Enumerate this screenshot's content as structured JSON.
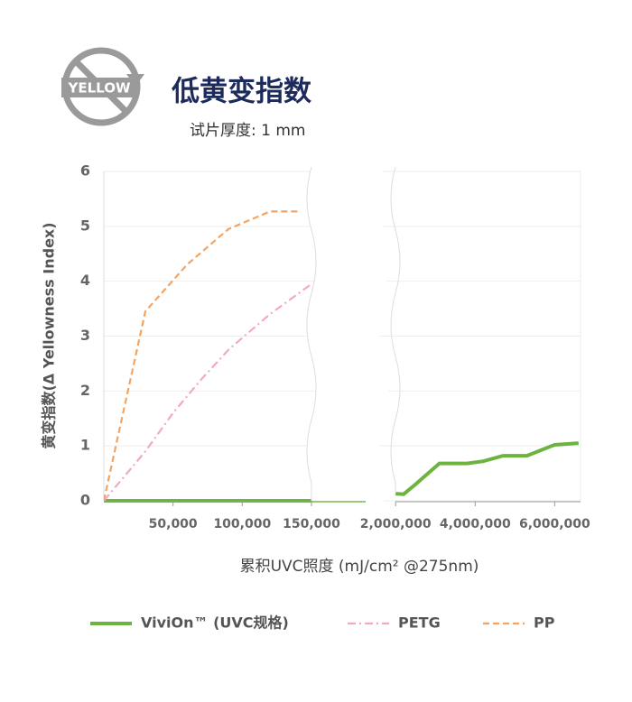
{
  "chart_data": {
    "type": "line",
    "title": "低黄变指数",
    "subtitle": "试片厚度: 1 mm",
    "icon_label": "YELLOW",
    "y_label": "黄变指数(Δ Yellowness Index)",
    "x_label": "累积UVC照度 (mJ/cm² @275nm)",
    "ylim": [
      0,
      6
    ],
    "yticks": [
      0,
      1,
      2,
      3,
      4,
      5,
      6
    ],
    "grid": true,
    "x_panels": [
      {
        "xlim": [
          0,
          150000
        ],
        "xticks": [
          {
            "value": 50000,
            "label": "50,000"
          },
          {
            "value": 100000,
            "label": "100,000"
          },
          {
            "value": 150000,
            "label": "150,000"
          }
        ]
      },
      {
        "xlim": [
          1700000,
          6650000
        ],
        "xticks": [
          {
            "value": 2000000,
            "label": "2,000,000"
          },
          {
            "value": 4000000,
            "label": "4,000,000"
          },
          {
            "value": 6000000,
            "label": "6,000,000"
          }
        ]
      }
    ],
    "legend": "bottom",
    "series": [
      {
        "name": "ViviOn™ (UVC规格)",
        "color": "#6cb33f",
        "dash": "solid",
        "x": [
          0,
          150000,
          null,
          2000000,
          2200000,
          2500000,
          3100000,
          3800000,
          4200000,
          4700000,
          5300000,
          6000000,
          6600000
        ],
        "values": [
          0,
          0,
          null,
          0.13,
          0.12,
          0.3,
          0.68,
          0.68,
          0.72,
          0.82,
          0.82,
          1.02,
          1.05
        ]
      },
      {
        "name": "PETG",
        "color": "#f2a9c9",
        "dash": "dashdot",
        "x": [
          0,
          15000,
          30000,
          50000,
          70000,
          90000,
          120000,
          150000
        ],
        "values": [
          0,
          0.45,
          0.9,
          1.6,
          2.2,
          2.75,
          3.4,
          3.95
        ]
      },
      {
        "name": "PP",
        "color": "#f4a460",
        "dash": "dashed",
        "x": [
          0,
          30000,
          60000,
          90000,
          120000,
          140000
        ],
        "values": [
          0,
          3.45,
          4.3,
          4.95,
          5.27,
          5.27
        ]
      }
    ]
  }
}
